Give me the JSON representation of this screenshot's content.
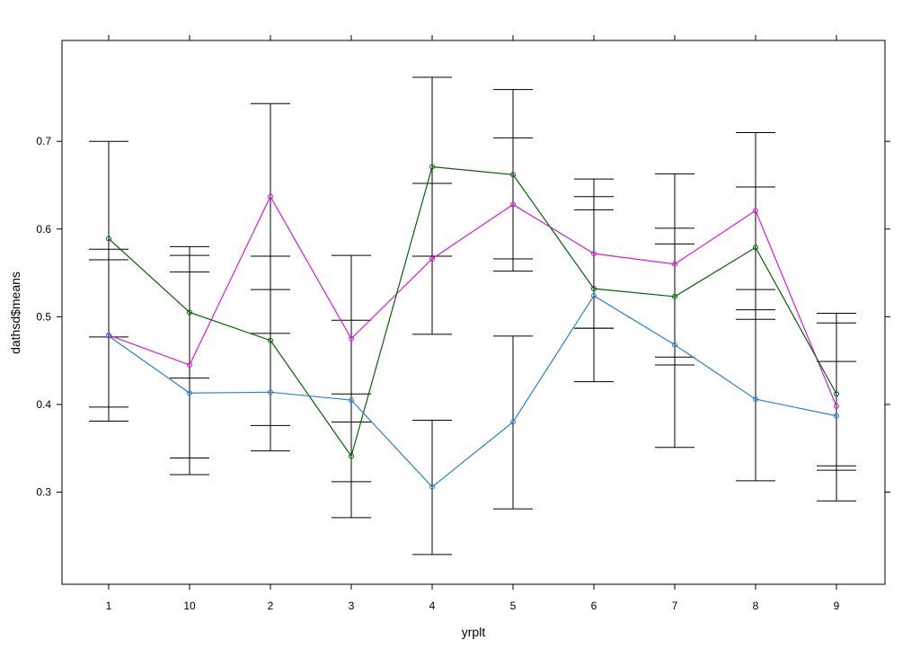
{
  "chart_data": {
    "type": "line",
    "xlabel": "yrplt",
    "ylabel": "dathsd$means",
    "categories": [
      "1",
      "10",
      "2",
      "3",
      "4",
      "5",
      "6",
      "7",
      "8",
      "9"
    ],
    "ylim": [
      0.195,
      0.815
    ],
    "yticks": [
      0.3,
      0.4,
      0.5,
      0.6,
      0.7
    ],
    "grid": false,
    "series": [
      {
        "color": "#d81bd8",
        "values": [
          0.479,
          0.445,
          0.637,
          0.475,
          0.566,
          0.628,
          0.572,
          0.56,
          0.621,
          0.398
        ],
        "lower": [
          0.381,
          0.32,
          0.531,
          0.38,
          0.48,
          0.552,
          0.487,
          0.454,
          0.531,
          0.325
        ],
        "upper": [
          0.577,
          0.57,
          0.743,
          0.57,
          0.652,
          0.704,
          0.657,
          0.663,
          0.71,
          0.493
        ]
      },
      {
        "color": "#006400",
        "values": [
          0.589,
          0.505,
          0.473,
          0.341,
          0.671,
          0.662,
          0.532,
          0.523,
          0.579,
          0.412
        ],
        "lower": [
          0.477,
          0.43,
          0.376,
          0.271,
          0.569,
          0.566,
          0.426,
          0.445,
          0.497,
          0.33
        ],
        "upper": [
          0.7,
          0.58,
          0.569,
          0.412,
          0.773,
          0.759,
          0.637,
          0.601,
          0.648,
          0.504
        ]
      },
      {
        "color": "#2a7fd4",
        "values": [
          0.478,
          0.413,
          0.414,
          0.405,
          0.306,
          0.38,
          0.524,
          0.468,
          0.406,
          0.387
        ],
        "lower": [
          0.397,
          0.339,
          0.347,
          0.312,
          0.229,
          0.281,
          0.487,
          0.351,
          0.313,
          0.29
        ],
        "upper": [
          0.565,
          0.551,
          0.481,
          0.496,
          0.382,
          0.478,
          0.622,
          0.583,
          0.508,
          0.449
        ]
      }
    ]
  }
}
